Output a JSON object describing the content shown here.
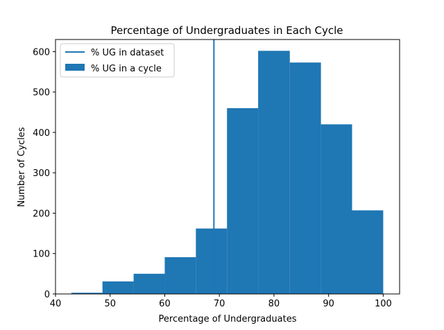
{
  "chart_data": {
    "type": "bar",
    "title": "Percentage of Undergraduates in Each Cycle",
    "xlabel": "Percentage of Undergraduates",
    "ylabel": "Number of Cycles",
    "xlim": [
      40,
      103
    ],
    "ylim": [
      0,
      630
    ],
    "xticks": [
      40,
      50,
      60,
      70,
      80,
      90,
      100
    ],
    "yticks": [
      0,
      100,
      200,
      300,
      400,
      500,
      600
    ],
    "bin_edges": [
      42.9,
      48.6,
      54.3,
      60.0,
      65.7,
      71.4,
      77.1,
      82.9,
      88.6,
      94.3,
      100.0
    ],
    "values": [
      3,
      31,
      50,
      91,
      162,
      460,
      602,
      573,
      420,
      207
    ],
    "bar_color": "#1f77b4",
    "reference_line": {
      "x": 69,
      "color": "#1f77b4"
    },
    "legend": {
      "placement": "top-left",
      "entries": [
        {
          "label": "% UG in dataset",
          "kind": "line"
        },
        {
          "label": "% UG in a cycle",
          "kind": "patch"
        }
      ]
    }
  }
}
